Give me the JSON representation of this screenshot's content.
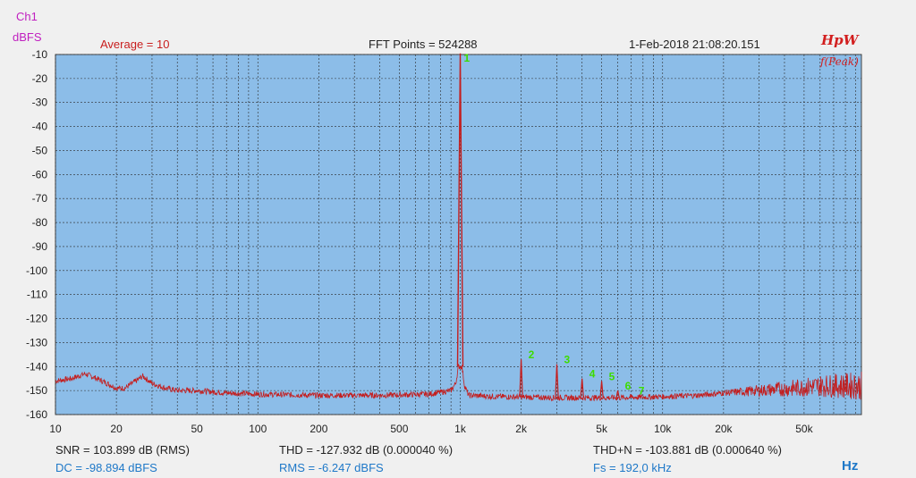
{
  "header": {
    "channel": "Ch1",
    "unit": "dBFS",
    "average": "Average = 10",
    "fft_points": "FFT Points = 524288",
    "timestamp": "1-Feb-2018 21:08:20.151",
    "brand": "HpW",
    "mode": "f(Peak)"
  },
  "colors": {
    "plot_bg": "#8cbde8",
    "trace": "#c41e1e",
    "marker": "#3ddc00",
    "grid": "#2a2a2a"
  },
  "chart_data": {
    "type": "line",
    "x_scale": "log",
    "xlim": [
      10,
      96000
    ],
    "ylim": [
      -160,
      -10
    ],
    "grid": true,
    "yticks": [
      -10,
      -20,
      -30,
      -40,
      -50,
      -60,
      -70,
      -80,
      -90,
      -100,
      -110,
      -120,
      -130,
      -140,
      -150,
      -160
    ],
    "xticks": [
      {
        "v": 10,
        "label": "10"
      },
      {
        "v": 20,
        "label": "20"
      },
      {
        "v": 50,
        "label": "50"
      },
      {
        "v": 100,
        "label": "100"
      },
      {
        "v": 200,
        "label": "200"
      },
      {
        "v": 500,
        "label": "500"
      },
      {
        "v": 1000,
        "label": "1k"
      },
      {
        "v": 2000,
        "label": "2k"
      },
      {
        "v": 5000,
        "label": "5k"
      },
      {
        "v": 10000,
        "label": "10k"
      },
      {
        "v": 20000,
        "label": "20k"
      },
      {
        "v": 50000,
        "label": "50k"
      }
    ],
    "xunit": "Hz",
    "noise_floor": [
      [
        10,
        -146
      ],
      [
        12,
        -145
      ],
      [
        14,
        -143
      ],
      [
        16,
        -145
      ],
      [
        18,
        -147
      ],
      [
        20,
        -149
      ],
      [
        22,
        -149
      ],
      [
        25,
        -146
      ],
      [
        27,
        -144
      ],
      [
        30,
        -147
      ],
      [
        35,
        -149
      ],
      [
        40,
        -150
      ],
      [
        50,
        -150
      ],
      [
        70,
        -151
      ],
      [
        100,
        -151.5
      ],
      [
        200,
        -152
      ],
      [
        400,
        -152
      ],
      [
        700,
        -151.5
      ],
      [
        900,
        -150
      ],
      [
        950,
        -147
      ],
      [
        980,
        -140
      ],
      [
        1020,
        -140
      ],
      [
        1050,
        -148
      ],
      [
        1100,
        -152
      ],
      [
        1500,
        -152.5
      ],
      [
        3000,
        -153
      ],
      [
        6000,
        -153
      ],
      [
        10000,
        -152.5
      ],
      [
        15000,
        -152
      ],
      [
        20000,
        -151
      ],
      [
        30000,
        -150
      ],
      [
        45000,
        -149
      ],
      [
        60000,
        -148
      ],
      [
        80000,
        -148
      ],
      [
        96000,
        -148
      ]
    ],
    "peaks": [
      {
        "label": "1",
        "f": 1000,
        "db": -9.5
      },
      {
        "label": "2",
        "f": 2000,
        "db": -137
      },
      {
        "label": "3",
        "f": 3000,
        "db": -139
      },
      {
        "label": "4",
        "f": 4000,
        "db": -145
      },
      {
        "label": "5",
        "f": 5000,
        "db": -146
      },
      {
        "label": "6",
        "f": 6000,
        "db": -150
      },
      {
        "label": "7",
        "f": 7000,
        "db": -152
      }
    ]
  },
  "stats": {
    "snr": "SNR = 103.899 dB (RMS)",
    "thd": "THD = -127.932 dB (0.000040 %)",
    "thdn": "THD+N = -103.881 dB (0.000640 %)",
    "dc": "DC = -98.894 dBFS",
    "rms": "RMS = -6.247 dBFS",
    "fs": "Fs = 192,0 kHz",
    "axis_unit": "Hz"
  }
}
